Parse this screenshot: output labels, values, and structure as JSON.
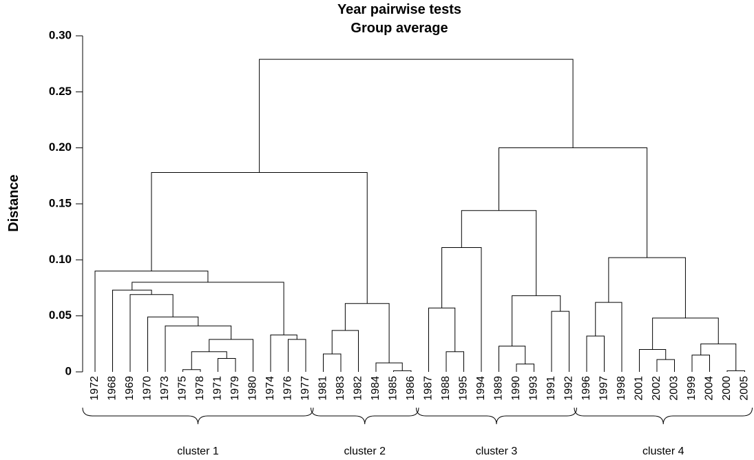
{
  "chart_data": {
    "type": "dendrogram",
    "title": "Year pairwise tests",
    "subtitle": "Group average",
    "y_label": "Distance",
    "ylim": [
      0,
      0.3
    ],
    "yticks": [
      0,
      0.05,
      {
        "value": 0.1,
        "label": "0.10"
      },
      0.15,
      {
        "value": 0.2,
        "label": "0.20"
      },
      0.25,
      {
        "value": 0.3,
        "label": "0.30"
      }
    ],
    "leaves": [
      "1972",
      "1968",
      "1969",
      "1970",
      "1973",
      "1975",
      "1978",
      "1971",
      "1979",
      "1980",
      "1974",
      "1976",
      "1977",
      "1981",
      "1983",
      "1982",
      "1984",
      "1985",
      "1986",
      "1987",
      "1988",
      "1995",
      "1994",
      "1989",
      "1990",
      "1993",
      "1991",
      "1992",
      "1996",
      "1997",
      "1998",
      "2001",
      "2002",
      "2003",
      "1999",
      "2004",
      "2000",
      "2005"
    ],
    "merges": [
      {
        "children": [
          5,
          6
        ],
        "height": 0.002
      },
      {
        "children": [
          7,
          8
        ],
        "height": 0.012
      },
      {
        "children": [
          38,
          39
        ],
        "height": 0.018
      },
      {
        "children": [
          40,
          9
        ],
        "height": 0.029
      },
      {
        "children": [
          4,
          41
        ],
        "height": 0.041
      },
      {
        "children": [
          3,
          42
        ],
        "height": 0.049
      },
      {
        "children": [
          2,
          43
        ],
        "height": 0.069
      },
      {
        "children": [
          1,
          44
        ],
        "height": 0.073
      },
      {
        "children": [
          11,
          12
        ],
        "height": 0.029
      },
      {
        "children": [
          10,
          46
        ],
        "height": 0.033
      },
      {
        "children": [
          45,
          47
        ],
        "height": 0.08
      },
      {
        "children": [
          0,
          48
        ],
        "height": 0.09
      },
      {
        "children": [
          13,
          14
        ],
        "height": 0.016
      },
      {
        "children": [
          50,
          15
        ],
        "height": 0.037
      },
      {
        "children": [
          17,
          18
        ],
        "height": 0.001
      },
      {
        "children": [
          16,
          52
        ],
        "height": 0.008
      },
      {
        "children": [
          51,
          53
        ],
        "height": 0.061
      },
      {
        "children": [
          49,
          54
        ],
        "height": 0.178
      },
      {
        "children": [
          20,
          21
        ],
        "height": 0.018
      },
      {
        "children": [
          19,
          56
        ],
        "height": 0.057
      },
      {
        "children": [
          57,
          22
        ],
        "height": 0.111
      },
      {
        "children": [
          24,
          25
        ],
        "height": 0.007
      },
      {
        "children": [
          23,
          59
        ],
        "height": 0.023
      },
      {
        "children": [
          26,
          27
        ],
        "height": 0.054
      },
      {
        "children": [
          60,
          61
        ],
        "height": 0.068
      },
      {
        "children": [
          58,
          62
        ],
        "height": 0.144
      },
      {
        "children": [
          28,
          29
        ],
        "height": 0.032
      },
      {
        "children": [
          64,
          30
        ],
        "height": 0.062
      },
      {
        "children": [
          32,
          33
        ],
        "height": 0.011
      },
      {
        "children": [
          31,
          66
        ],
        "height": 0.02
      },
      {
        "children": [
          34,
          35
        ],
        "height": 0.015
      },
      {
        "children": [
          36,
          37
        ],
        "height": 0.001
      },
      {
        "children": [
          68,
          69
        ],
        "height": 0.025
      },
      {
        "children": [
          67,
          70
        ],
        "height": 0.048
      },
      {
        "children": [
          65,
          71
        ],
        "height": 0.102
      },
      {
        "children": [
          63,
          72
        ],
        "height": 0.2
      },
      {
        "children": [
          55,
          73
        ],
        "height": 0.279
      }
    ],
    "clusters": [
      {
        "label": "cluster 1",
        "leaves": [
          0,
          12
        ]
      },
      {
        "label": "cluster 2",
        "leaves": [
          13,
          18
        ]
      },
      {
        "label": "cluster 3",
        "leaves": [
          19,
          27
        ]
      },
      {
        "label": "cluster 4",
        "leaves": [
          28,
          37
        ]
      }
    ]
  }
}
